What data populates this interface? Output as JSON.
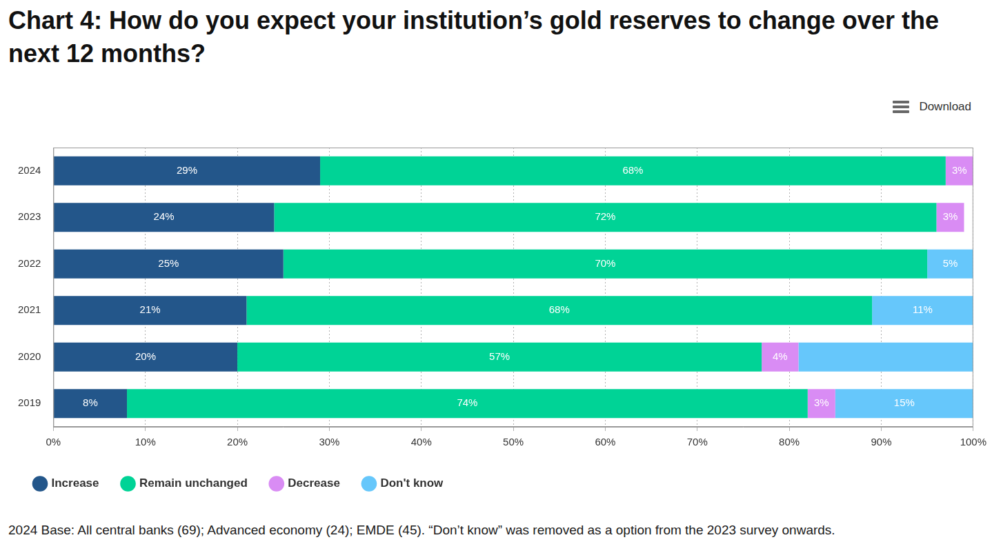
{
  "chart_data": {
    "type": "bar",
    "title": "Chart 4: How do you expect your institution’s gold reserves to change over the next 12 months?",
    "orientation": "horizontal",
    "stacked": true,
    "data_labels": true,
    "grid": true,
    "legend": "bottom",
    "categories": [
      "2024",
      "2023",
      "2022",
      "2021",
      "2020",
      "2019"
    ],
    "series": [
      {
        "name": "Increase",
        "color": "#23568a",
        "values": [
          29,
          24,
          25,
          21,
          20,
          8
        ],
        "value_labels": [
          "29%",
          "24%",
          "25%",
          "21%",
          "20%",
          "8%"
        ]
      },
      {
        "name": "Remain unchanged",
        "color": "#00d396",
        "values": [
          68,
          72,
          70,
          68,
          57,
          74
        ],
        "value_labels": [
          "68%",
          "72%",
          "70%",
          "68%",
          "57%",
          "74%"
        ]
      },
      {
        "name": "Decrease",
        "color": "#d98cf4",
        "values": [
          3,
          3,
          null,
          null,
          4,
          3
        ],
        "value_labels": [
          "3%",
          "3%",
          null,
          null,
          "4%",
          "3%"
        ]
      },
      {
        "name": "Don't know",
        "color": "#66c7fb",
        "values": [
          null,
          null,
          5,
          11,
          19,
          15
        ],
        "value_labels": [
          null,
          null,
          "5%",
          "11%",
          null,
          "15%"
        ]
      }
    ],
    "xlim": [
      0,
      100
    ],
    "xticks": [
      {
        "value": 0,
        "label": "0%"
      },
      {
        "value": 10,
        "label": "10%"
      },
      {
        "value": 20,
        "label": "20%"
      },
      {
        "value": 30,
        "label": "30%"
      },
      {
        "value": 40,
        "label": "40%"
      },
      {
        "value": 50,
        "label": "50%"
      },
      {
        "value": 60,
        "label": "60%"
      },
      {
        "value": 70,
        "label": "70%"
      },
      {
        "value": 80,
        "label": "80%"
      },
      {
        "value": 90,
        "label": "90%"
      },
      {
        "value": 100,
        "label": "100%"
      }
    ],
    "footnote": "2024 Base: All central banks (69); Advanced economy (24); EMDE (45). “Don’t know” was removed as a option from the 2023 survey onwards.",
    "download_label": "Download"
  }
}
